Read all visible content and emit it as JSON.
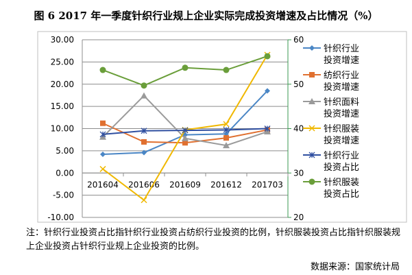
{
  "chart_data": {
    "type": "line",
    "title": "图 6 2017 年一季度针织行业规上企业实际完成投资增速及占比情况（%）",
    "categories": [
      "201604",
      "201606",
      "201609",
      "201612",
      "201703"
    ],
    "y_left": {
      "range": [
        -10,
        30
      ],
      "ticks": [
        "30.00",
        "25.00",
        "20.00",
        "15.00",
        "10.00",
        "5.00",
        "0.00",
        "-5.00",
        "-10.00"
      ]
    },
    "y_right": {
      "range": [
        20,
        60
      ],
      "ticks": [
        "60",
        "50",
        "40",
        "30",
        "20"
      ]
    },
    "grid": true,
    "legend_position": "right",
    "series": [
      {
        "name": "针织行业投资增速",
        "axis": "left",
        "color": "#4a86c5",
        "marker": "diamond",
        "values": [
          4.2,
          4.6,
          8.6,
          8.8,
          18.5
        ]
      },
      {
        "name": "纺织行业投资增速",
        "axis": "left",
        "color": "#e07030",
        "marker": "square",
        "values": [
          11.2,
          7.0,
          6.8,
          7.9,
          9.7
        ]
      },
      {
        "name": "针织面料投资增速",
        "axis": "left",
        "color": "#9a9a9a",
        "marker": "triangle",
        "values": [
          8.1,
          17.4,
          7.8,
          6.2,
          9.3
        ]
      },
      {
        "name": "针织服装投资增速",
        "axis": "left",
        "color": "#f0b800",
        "marker": "x",
        "values": [
          0.9,
          -6.1,
          9.7,
          11.0,
          26.6
        ]
      },
      {
        "name": "针织行业投资占比",
        "axis": "right",
        "color": "#2f4fa0",
        "marker": "star",
        "values": [
          38.7,
          39.5,
          39.6,
          39.7,
          40.0
        ]
      },
      {
        "name": "针织服装投资占比",
        "axis": "right",
        "color": "#6a9e3a",
        "marker": "circle",
        "values": [
          53.2,
          49.7,
          53.7,
          53.2,
          56.3
        ]
      }
    ]
  },
  "legend_lines": [
    [
      "针织行业",
      "投资增速"
    ],
    [
      "纺织行业",
      "投资增速"
    ],
    [
      "针织面料",
      "投资增速"
    ],
    [
      "针织服装",
      "投资增速"
    ],
    [
      "针织行业",
      "投资占比"
    ],
    [
      "针织服装",
      "投资占比"
    ]
  ],
  "note": "注：针织行业投资占比指针织行业投资占纺织行业投资的比例，针织服装投资占比指针织服装规上企业投资占针织行业规上企业投资的比例。",
  "source": "数据来源：国家统计局"
}
